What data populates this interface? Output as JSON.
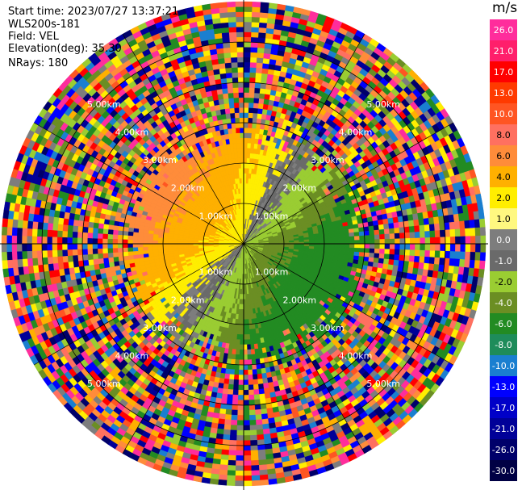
{
  "header": {
    "start_time": "Start time: 2023/07/27 13:37:21",
    "instrument": "WLS200s-181",
    "field": "Field: VEL",
    "elevation": "Elevation(deg): 35.30",
    "nrays": "NRays: 180"
  },
  "colorbar": {
    "unit": "m/s",
    "bins": [
      {
        "label": "26.0",
        "color": "#ff2d9c"
      },
      {
        "label": "21.0",
        "color": "#ff1f6b"
      },
      {
        "label": "17.0",
        "color": "#ff0000"
      },
      {
        "label": "13.0",
        "color": "#ff3a00"
      },
      {
        "label": "10.0",
        "color": "#ff5522"
      },
      {
        "label": "8.0",
        "color": "#ff7060"
      },
      {
        "label": "6.0",
        "color": "#ff8c3a"
      },
      {
        "label": "4.0",
        "color": "#ffb000"
      },
      {
        "label": "2.0",
        "color": "#ffee00"
      },
      {
        "label": "1.0",
        "color": "#fff880"
      },
      {
        "label": "0.0",
        "color": "#7d7d7d"
      },
      {
        "label": "-1.0",
        "color": "#6a6a6a"
      },
      {
        "label": "-2.0",
        "color": "#9acd32"
      },
      {
        "label": "-4.0",
        "color": "#6b8e23"
      },
      {
        "label": "-6.0",
        "color": "#228b22"
      },
      {
        "label": "-8.0",
        "color": "#1e8c5a"
      },
      {
        "label": "-10.0",
        "color": "#1a7fd0"
      },
      {
        "label": "-13.0",
        "color": "#0000ff"
      },
      {
        "label": "-17.0",
        "color": "#0000c8"
      },
      {
        "label": "-21.0",
        "color": "#000098"
      },
      {
        "label": "-26.0",
        "color": "#00006a"
      },
      {
        "label": "-30.0",
        "color": "#000044"
      }
    ]
  },
  "chart_data": {
    "type": "heatmap",
    "projection": "polar PPI",
    "field": "VEL",
    "unit": "m/s",
    "range_rings_km": [
      1.0,
      2.0,
      3.0,
      4.0,
      5.0
    ],
    "ring_labels": [
      "1.00km",
      "2.00km",
      "3.00km",
      "4.00km",
      "5.00km"
    ],
    "max_range_km": 6.0,
    "azimuth_lines_deg": [
      0,
      30,
      60,
      90,
      120,
      150,
      180,
      210,
      240,
      270,
      300,
      330
    ],
    "grid": true,
    "colorbar_ticks": [
      26.0,
      21.0,
      17.0,
      13.0,
      10.0,
      8.0,
      6.0,
      4.0,
      2.0,
      1.0,
      0.0,
      -1.0,
      -2.0,
      -4.0,
      -6.0,
      -8.0,
      -10.0,
      -13.0,
      -17.0,
      -21.0,
      -26.0,
      -30.0
    ],
    "vmin": -30.0,
    "vmax": 30.0
  }
}
